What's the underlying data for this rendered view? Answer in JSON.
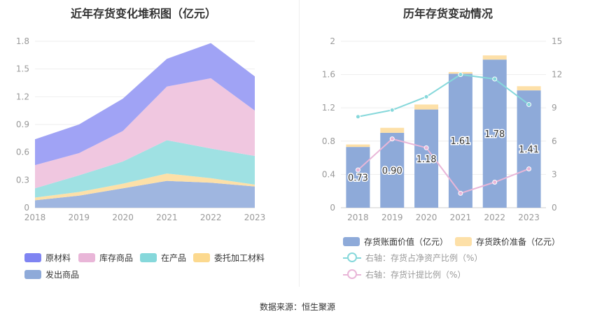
{
  "source_label": "数据来源：恒生聚源",
  "chart_data": [
    {
      "type": "area",
      "stacked": true,
      "title": "近年存货变化堆积图（亿元）",
      "x": [
        "2018",
        "2019",
        "2020",
        "2021",
        "2022",
        "2023"
      ],
      "ylim": [
        0,
        1.8
      ],
      "yticks": [
        "0",
        "0.3",
        "0.6",
        "0.9",
        "1.2",
        "1.5",
        "1.8"
      ],
      "grid": true,
      "legend_position": "bottom",
      "series": [
        {
          "name": "发出商品",
          "color": "#9fb6e0",
          "values": [
            0.08,
            0.13,
            0.21,
            0.29,
            0.27,
            0.23
          ]
        },
        {
          "name": "委托加工材料",
          "color": "#fde0a8",
          "values": [
            0.03,
            0.04,
            0.05,
            0.08,
            0.05,
            0.02
          ]
        },
        {
          "name": "在产品",
          "color": "#9fe1e3",
          "values": [
            0.1,
            0.18,
            0.24,
            0.36,
            0.32,
            0.31
          ]
        },
        {
          "name": "库存商品",
          "color": "#f0c7e0",
          "values": [
            0.25,
            0.24,
            0.33,
            0.58,
            0.76,
            0.49
          ]
        },
        {
          "name": "原材料",
          "color": "#a0a3f5",
          "values": [
            0.28,
            0.31,
            0.35,
            0.3,
            0.38,
            0.37
          ]
        }
      ],
      "legend_colors": [
        "#7f84f2",
        "#e9b6d8",
        "#86d8db",
        "#fcd98f",
        "#8eaad9"
      ]
    },
    {
      "type": "bar",
      "title": "历年存货变动情况",
      "x": [
        "2018",
        "2019",
        "2020",
        "2021",
        "2022",
        "2023"
      ],
      "ylim": [
        0,
        2
      ],
      "yticks": [
        "0",
        "0.4",
        "0.8",
        "1.2",
        "1.6",
        "2"
      ],
      "y2lim": [
        0,
        15
      ],
      "y2ticks": [
        "0",
        "3",
        "6",
        "9",
        "12",
        "15"
      ],
      "legend_position": "bottom",
      "series": [
        {
          "name": "存货账面价值（亿元）",
          "type": "bar",
          "color": "#8eaad9",
          "values": [
            0.73,
            0.9,
            1.18,
            1.61,
            1.78,
            1.41
          ],
          "labels": [
            "0.73",
            "0.90",
            "1.18",
            "1.61",
            "1.78",
            "1.41"
          ]
        },
        {
          "name": "存货跌价准备（亿元）",
          "type": "bar",
          "stacked": true,
          "color": "#fde0a8",
          "values": [
            0.03,
            0.06,
            0.06,
            0.02,
            0.05,
            0.05
          ]
        },
        {
          "name": "右轴：存货占净资产比例（%）",
          "type": "line",
          "axis": "right",
          "color": "#86d8db",
          "values": [
            8.2,
            8.8,
            10.0,
            12.0,
            11.6,
            9.3
          ]
        },
        {
          "name": "右轴：存货计提比例（%）",
          "type": "line",
          "axis": "right",
          "color": "#e9b6d8",
          "values": [
            3.4,
            6.2,
            5.4,
            1.3,
            2.3,
            3.5
          ]
        }
      ]
    }
  ]
}
